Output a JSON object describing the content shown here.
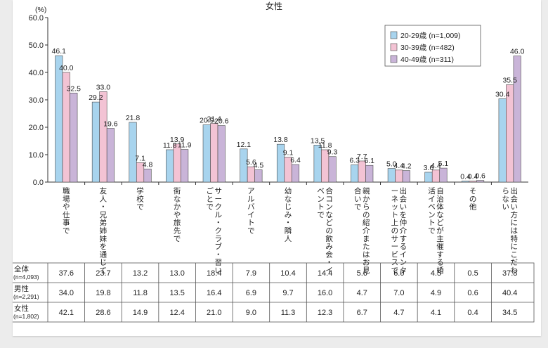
{
  "chart_data": {
    "type": "bar",
    "title": "女性",
    "yunit": "(%)",
    "ylim": [
      0,
      60
    ],
    "yticks": [
      "0.0",
      "10.0",
      "20.0",
      "30.0",
      "40.0",
      "50.0",
      "60.0"
    ],
    "categories": [
      "職場や仕事で",
      "友人・兄弟姉妹を通じて",
      "学校で",
      "街なかや旅先で",
      "サークル・クラブ・習いごとで",
      "アルバイトで",
      "幼なじみ・隣人",
      "合コンなどの飲み会・イベントで",
      "親からの紹介またはお見合いで",
      "出会いを仲介するインターネット上のサービスで",
      "自治体などが主催する婚活イベントで",
      "その他",
      "出会い方には特にこだわらない"
    ],
    "series": [
      {
        "name": "20-29歳 (n=1,009)",
        "color": "#a8d4ee",
        "values": [
          46.1,
          29.2,
          21.8,
          11.8,
          20.9,
          12.1,
          13.8,
          13.5,
          6.3,
          5.0,
          3.6,
          0.4,
          30.4
        ]
      },
      {
        "name": "30-39歳 (n=482)",
        "color": "#f3c3d4",
        "values": [
          40.0,
          33.0,
          7.1,
          13.9,
          21.4,
          5.6,
          9.1,
          11.8,
          7.7,
          4.4,
          4.4,
          0.4,
          35.5
        ]
      },
      {
        "name": "40-49歳 (n=311)",
        "color": "#c9b4d8",
        "values": [
          32.5,
          19.6,
          4.8,
          11.9,
          20.6,
          4.5,
          6.4,
          9.3,
          6.1,
          4.2,
          5.1,
          0.6,
          46.0
        ]
      }
    ],
    "table": {
      "rows": [
        {
          "label": "全体",
          "n": "(n=4,093)",
          "values": [
            "37.6",
            "23.7",
            "13.2",
            "13.0",
            "18.4",
            "7.9",
            "10.4",
            "14.4",
            "5.6",
            "6.0",
            "4.5",
            "0.5",
            "37.8"
          ]
        },
        {
          "label": "男性",
          "n": "(n=2,291)",
          "values": [
            "34.0",
            "19.8",
            "11.8",
            "13.5",
            "16.4",
            "6.9",
            "9.7",
            "16.0",
            "4.7",
            "7.0",
            "4.9",
            "0.6",
            "40.4"
          ]
        },
        {
          "label": "女性",
          "n": "(n=1,802)",
          "values": [
            "42.1",
            "28.6",
            "14.9",
            "12.4",
            "21.0",
            "9.0",
            "11.3",
            "12.3",
            "6.7",
            "4.7",
            "4.1",
            "0.4",
            "34.5"
          ]
        }
      ]
    },
    "legend_position": "top-right",
    "grid": false
  }
}
